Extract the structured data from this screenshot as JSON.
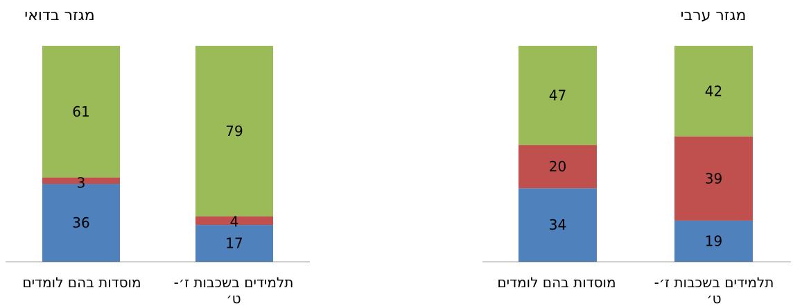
{
  "colors": {
    "series_1": "#4F81BD",
    "series_2": "#C0504D",
    "series_3": "#9BBB59",
    "axis": "#808080"
  },
  "chart_data": [
    {
      "type": "bar",
      "stacked": true,
      "percent": true,
      "title": "מגזר בדואי",
      "categories": [
        "מוסדות בהם לומדים",
        "תלמידים בשכבות ז׳- ט׳"
      ],
      "category_lines": [
        [
          "מוסדות בהם לומדים"
        ],
        [
          "תלמידים בשכבות ז׳-",
          "ט׳"
        ]
      ],
      "series": [
        {
          "values": [
            36,
            17
          ]
        },
        {
          "values": [
            3,
            4
          ]
        },
        {
          "values": [
            61,
            79
          ]
        }
      ],
      "ylim": [
        0,
        100
      ],
      "grid": false,
      "legend": "none"
    },
    {
      "type": "bar",
      "stacked": true,
      "percent": true,
      "title": "מגזר ערבי",
      "categories": [
        "מוסדות בהם לומדים",
        "תלמידים בשכבות ז׳- ט׳"
      ],
      "category_lines": [
        [
          "מוסדות בהם לומדים"
        ],
        [
          "תלמידים בשכבות ז׳-",
          "ט׳"
        ]
      ],
      "series": [
        {
          "values": [
            34,
            19
          ]
        },
        {
          "values": [
            20,
            39
          ]
        },
        {
          "values": [
            47,
            42
          ]
        }
      ],
      "ylim": [
        0,
        100
      ],
      "grid": false,
      "legend": "none"
    }
  ]
}
